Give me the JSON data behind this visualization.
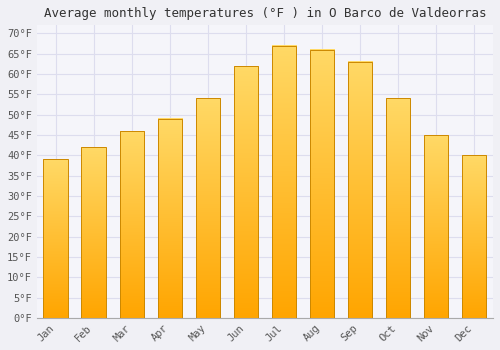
{
  "title": "Average monthly temperatures (°F ) in O Barco de Valdeorras",
  "months": [
    "Jan",
    "Feb",
    "Mar",
    "Apr",
    "May",
    "Jun",
    "Jul",
    "Aug",
    "Sep",
    "Oct",
    "Nov",
    "Dec"
  ],
  "values": [
    39,
    42,
    46,
    49,
    54,
    62,
    67,
    66,
    63,
    54,
    45,
    40
  ],
  "bar_color_top": "#FFD966",
  "bar_color_bottom": "#FFA500",
  "bar_edge_color": "#CC8800",
  "background_color": "#F0F0F5",
  "plot_bg_color": "#F5F5FA",
  "grid_color": "#DDDDEE",
  "ylim": [
    0,
    72
  ],
  "yticks": [
    0,
    5,
    10,
    15,
    20,
    25,
    30,
    35,
    40,
    45,
    50,
    55,
    60,
    65,
    70
  ],
  "title_fontsize": 9,
  "tick_fontsize": 7.5
}
